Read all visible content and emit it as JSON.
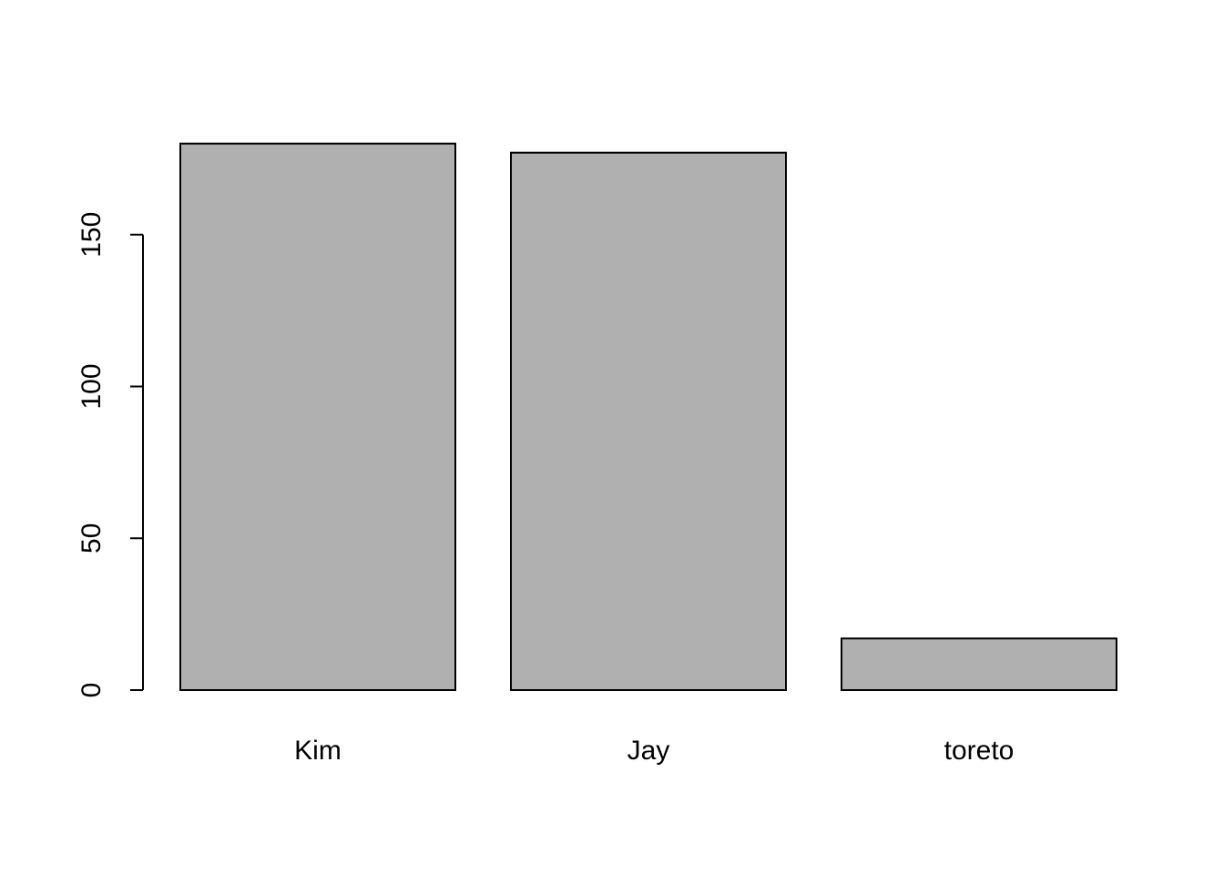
{
  "chart_data": {
    "type": "bar",
    "categories": [
      "Kim",
      "Jay",
      "toreto"
    ],
    "values": [
      180,
      177,
      17
    ],
    "title": "",
    "xlabel": "",
    "ylabel": "",
    "ylim": [
      0,
      180
    ],
    "yticks": [
      0,
      50,
      100,
      150
    ],
    "ytick_labels": [
      "0",
      "50",
      "100",
      "150"
    ],
    "grid": false,
    "legend": "none",
    "colors": {
      "bar_fill": "#b0b0b0",
      "bar_stroke": "#000000",
      "axis": "#000000",
      "background": "#ffffff"
    }
  }
}
